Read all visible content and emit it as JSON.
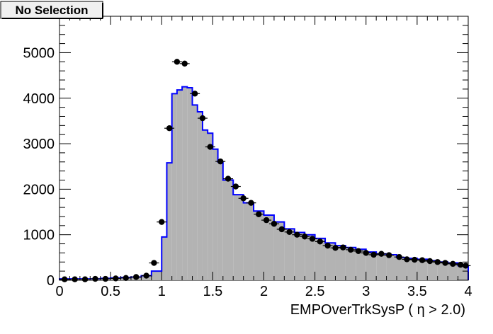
{
  "badge": {
    "text": "No Selection"
  },
  "colors": {
    "mc_fill": "#b3b3b3",
    "mc_line": "#0000ff",
    "data_marker": "#000000"
  },
  "chart_data": {
    "type": "bar",
    "title": "No Selection",
    "xlabel": "EMPOverTrkSysP ( η > 2.0)",
    "ylabel": "",
    "xlim": [
      0,
      4
    ],
    "ylim": [
      0,
      5800
    ],
    "x_ticks": [
      "0",
      "0.5",
      "1",
      "1.5",
      "2",
      "2.5",
      "3",
      "3.5",
      "4"
    ],
    "y_ticks": [
      "0",
      "1000",
      "2000",
      "3000",
      "4000",
      "5000"
    ],
    "bin_edges": [
      0.0,
      0.1,
      0.2,
      0.3,
      0.4,
      0.5,
      0.6,
      0.7,
      0.8,
      0.9,
      1.0,
      1.05,
      1.1,
      1.15,
      1.2,
      1.25,
      1.3,
      1.35,
      1.4,
      1.45,
      1.5,
      1.55,
      1.6,
      1.7,
      1.8,
      1.9,
      2.0,
      2.1,
      2.2,
      2.3,
      2.4,
      2.5,
      2.6,
      2.7,
      2.8,
      2.9,
      3.0,
      3.1,
      3.2,
      3.3,
      3.4,
      3.5,
      3.6,
      3.7,
      3.8,
      3.9,
      4.0
    ],
    "series": [
      {
        "type": "histogram",
        "values": [
          30,
          30,
          30,
          30,
          40,
          50,
          60,
          70,
          100,
          200,
          950,
          2580,
          4100,
          4180,
          4250,
          4230,
          3850,
          3700,
          3300,
          3230,
          2880,
          2600,
          2200,
          1880,
          1700,
          1520,
          1430,
          1280,
          1130,
          1050,
          1000,
          920,
          820,
          760,
          720,
          680,
          620,
          580,
          560,
          500,
          480,
          460,
          430,
          400,
          380,
          320
        ]
      },
      {
        "type": "points",
        "x": [
          0.05,
          0.15,
          0.25,
          0.35,
          0.45,
          0.55,
          0.65,
          0.75,
          0.85,
          0.925,
          1.0,
          1.075,
          1.15,
          1.225,
          1.325,
          1.4,
          1.475,
          1.575,
          1.65,
          1.725,
          1.8,
          1.875,
          1.95,
          2.025,
          2.1,
          2.175,
          2.25,
          2.325,
          2.4,
          2.475,
          2.55,
          2.625,
          2.7,
          2.775,
          2.85,
          2.925,
          3.0,
          3.075,
          3.15,
          3.225,
          3.325,
          3.4,
          3.475,
          3.55,
          3.625,
          3.7,
          3.775,
          3.85,
          3.925,
          3.975
        ],
        "values": [
          20,
          20,
          20,
          30,
          30,
          40,
          50,
          70,
          100,
          380,
          1280,
          3340,
          4800,
          4760,
          4100,
          3560,
          2930,
          2610,
          2230,
          2060,
          1800,
          1700,
          1450,
          1320,
          1240,
          1120,
          1060,
          1000,
          960,
          910,
          850,
          760,
          710,
          720,
          670,
          640,
          600,
          560,
          580,
          550,
          510,
          460,
          450,
          440,
          420,
          400,
          380,
          360,
          340,
          320
        ]
      }
    ]
  }
}
